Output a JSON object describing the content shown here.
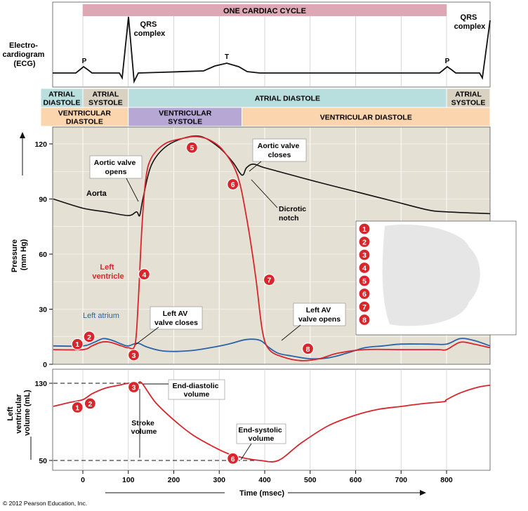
{
  "colors": {
    "cycle_band": "#dea7b6",
    "atrial_band": "#b9dede",
    "atrial_systole_band": "#d9d1c1",
    "ventricular_systole_band": "#b7a7d5",
    "ventricular_diastole_band": "#fbd5ad",
    "plot_bg": "#e4e0d3",
    "grid": "#ffffff",
    "ventricle_line": "#d8262c",
    "aorta_line": "#111111",
    "atrium_line": "#2a63a8",
    "marker": "#d8262c"
  },
  "ecg": {
    "title": "ONE CARDIAC CYCLE",
    "label": [
      "Electro-",
      "cardiogram",
      "(ECG)"
    ],
    "qrs_left": [
      "QRS",
      "complex"
    ],
    "qrs_right": [
      "QRS",
      "complex"
    ],
    "p": "P",
    "t": "T"
  },
  "phases": {
    "atrial": [
      {
        "lines": [
          "ATRIAL",
          "DIASTOLE"
        ],
        "from": -65,
        "to": 0
      },
      {
        "lines": [
          "ATRIAL",
          "SYSTOLE"
        ],
        "from": 0,
        "to": 100
      },
      {
        "lines": [
          "ATRIAL DIASTOLE"
        ],
        "from": 100,
        "to": 800
      },
      {
        "lines": [
          "ATRIAL",
          "SYSTOLE"
        ],
        "from": 800,
        "to": 900
      }
    ],
    "ventricular": [
      {
        "lines": [
          "VENTRICULAR",
          "DIASTOLE"
        ],
        "from": -65,
        "to": 100
      },
      {
        "lines": [
          "VENTRICULAR",
          "SYSTOLE"
        ],
        "from": 100,
        "to": 350
      },
      {
        "lines": [
          "VENTRICULAR DIASTOLE"
        ],
        "from": 350,
        "to": 900
      }
    ]
  },
  "pressure": {
    "ylabel": [
      "Pressure",
      "(mm Hg)"
    ],
    "yticks": [
      0,
      30,
      60,
      90,
      120
    ],
    "ylim": [
      0,
      135
    ],
    "aorta_label": "Aorta",
    "ventricle_label": [
      "Left",
      "ventricle"
    ],
    "atrium_label": "Left atrium",
    "annotations": {
      "aortic_opens": [
        "Aortic valve",
        "opens"
      ],
      "aortic_closes": [
        "Aortic valve",
        "closes"
      ],
      "dicrotic": [
        "Dicrotic",
        "notch"
      ],
      "av_closes": [
        "Left AV",
        "valve closes"
      ],
      "av_opens": [
        "Left AV",
        "valve opens"
      ]
    },
    "series": {
      "aorta": [
        [
          -65,
          90
        ],
        [
          0,
          85
        ],
        [
          50,
          83
        ],
        [
          100,
          81
        ],
        [
          118,
          83
        ],
        [
          125,
          81
        ],
        [
          132,
          90
        ],
        [
          150,
          108
        ],
        [
          180,
          118
        ],
        [
          220,
          123
        ],
        [
          260,
          124
        ],
        [
          300,
          118
        ],
        [
          330,
          110
        ],
        [
          350,
          103
        ],
        [
          360,
          107
        ],
        [
          375,
          109
        ],
        [
          400,
          107
        ],
        [
          460,
          103
        ],
        [
          520,
          99
        ],
        [
          600,
          94
        ],
        [
          680,
          89
        ],
        [
          760,
          84
        ],
        [
          800,
          83
        ],
        [
          900,
          82
        ]
      ],
      "ventricle": [
        [
          -65,
          8
        ],
        [
          0,
          8
        ],
        [
          20,
          10
        ],
        [
          40,
          12
        ],
        [
          60,
          12
        ],
        [
          85,
          10
        ],
        [
          100,
          9
        ],
        [
          115,
          11
        ],
        [
          122,
          35
        ],
        [
          130,
          75
        ],
        [
          138,
          100
        ],
        [
          150,
          112
        ],
        [
          180,
          120
        ],
        [
          220,
          123
        ],
        [
          250,
          124
        ],
        [
          280,
          122
        ],
        [
          310,
          116
        ],
        [
          340,
          103
        ],
        [
          360,
          80
        ],
        [
          380,
          48
        ],
        [
          395,
          18
        ],
        [
          410,
          8
        ],
        [
          440,
          4
        ],
        [
          480,
          2
        ],
        [
          520,
          3
        ],
        [
          560,
          6
        ],
        [
          620,
          8
        ],
        [
          700,
          8
        ],
        [
          780,
          8
        ],
        [
          800,
          8
        ],
        [
          830,
          12
        ],
        [
          860,
          11
        ],
        [
          900,
          9
        ]
      ],
      "atrium": [
        [
          -65,
          10
        ],
        [
          0,
          10
        ],
        [
          25,
          12
        ],
        [
          45,
          14
        ],
        [
          65,
          13
        ],
        [
          85,
          11
        ],
        [
          100,
          10
        ],
        [
          120,
          11.5
        ],
        [
          140,
          9.5
        ],
        [
          170,
          7.5
        ],
        [
          200,
          7
        ],
        [
          240,
          7.5
        ],
        [
          280,
          9
        ],
        [
          320,
          11
        ],
        [
          360,
          13.5
        ],
        [
          390,
          13
        ],
        [
          410,
          9
        ],
        [
          430,
          6
        ],
        [
          460,
          4.5
        ],
        [
          500,
          3
        ],
        [
          540,
          3.5
        ],
        [
          580,
          6
        ],
        [
          620,
          9
        ],
        [
          660,
          10
        ],
        [
          700,
          11
        ],
        [
          760,
          11
        ],
        [
          800,
          11
        ],
        [
          830,
          14
        ],
        [
          860,
          13
        ],
        [
          900,
          10
        ]
      ]
    }
  },
  "volume": {
    "ylabel": [
      "Left",
      "ventricular",
      "volume (mL)"
    ],
    "yticks": [
      50,
      130
    ],
    "ylim": [
      40,
      140
    ],
    "edv_label": [
      "End-diastolic",
      "volume"
    ],
    "esv_label": [
      "End-systolic",
      "volume"
    ],
    "stroke_label": [
      "Stroke",
      "volume"
    ],
    "series": [
      [
        -65,
        106
      ],
      [
        -30,
        110
      ],
      [
        0,
        113
      ],
      [
        20,
        119
      ],
      [
        50,
        125
      ],
      [
        80,
        128
      ],
      [
        100,
        130
      ],
      [
        120,
        130
      ],
      [
        130,
        130
      ],
      [
        160,
        110
      ],
      [
        200,
        92
      ],
      [
        240,
        77
      ],
      [
        280,
        66
      ],
      [
        320,
        57
      ],
      [
        360,
        52
      ],
      [
        390,
        50
      ],
      [
        430,
        50
      ],
      [
        480,
        68
      ],
      [
        540,
        86
      ],
      [
        600,
        97
      ],
      [
        650,
        103
      ],
      [
        700,
        106
      ],
      [
        750,
        109
      ],
      [
        795,
        111
      ],
      [
        800,
        113
      ],
      [
        830,
        120
      ],
      [
        870,
        126
      ],
      [
        900,
        128
      ]
    ]
  },
  "xaxis": {
    "label": "Time (msec)",
    "ticks": [
      0,
      100,
      200,
      300,
      400,
      500,
      600,
      700,
      800
    ]
  },
  "legend": {
    "items": [
      "1",
      "2",
      "3",
      "4",
      "5",
      "6",
      "7",
      "8"
    ]
  },
  "markers": {
    "pressure": [
      {
        "label": "1",
        "x": -12,
        "y": 11
      },
      {
        "label": "2",
        "x": 14,
        "y": 15
      },
      {
        "label": "3",
        "x": 112,
        "y": 5
      },
      {
        "label": "4",
        "x": 135,
        "y": 49
      },
      {
        "label": "5",
        "x": 240,
        "y": 118
      },
      {
        "label": "6",
        "x": 330,
        "y": 98
      },
      {
        "label": "7",
        "x": 410,
        "y": 46
      },
      {
        "label": "8",
        "x": 495,
        "y": 8.5
      }
    ],
    "volume": [
      {
        "label": "1",
        "x": -12,
        "y": 105
      },
      {
        "label": "2",
        "x": 16,
        "y": 109
      },
      {
        "label": "3",
        "x": 112,
        "y": 126
      },
      {
        "label": "6",
        "x": 330,
        "y": 52
      }
    ]
  },
  "copyright": "© 2012 Pearson Education, Inc."
}
